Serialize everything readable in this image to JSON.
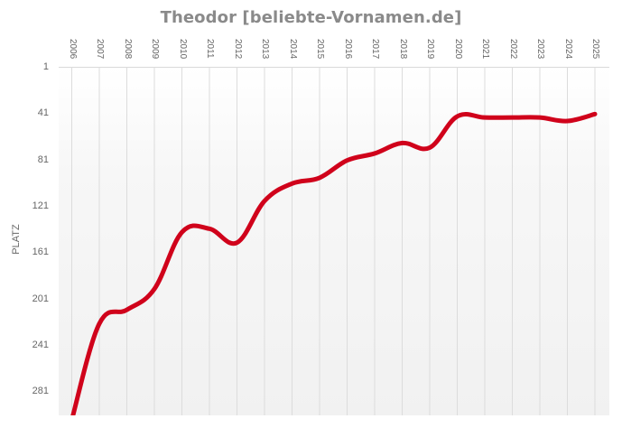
{
  "chart_data": {
    "type": "line",
    "title": "Theodor [beliebte-Vornamen.de]",
    "xlabel": "",
    "ylabel": "PLATZ",
    "y_inverted": true,
    "ylim": [
      1,
      300
    ],
    "y_ticks": [
      "1",
      "41",
      "81",
      "121",
      "161",
      "201",
      "241",
      "281"
    ],
    "x_ticks": [
      "2006",
      "2007",
      "2008",
      "2009",
      "2010",
      "2011",
      "2012",
      "2013",
      "2014",
      "2015",
      "2016",
      "2017",
      "2018",
      "2019",
      "2020",
      "2021",
      "2022",
      "2023",
      "2024",
      "2025"
    ],
    "grid": "vertical",
    "legend": "none",
    "series": [
      {
        "name": "Theodor",
        "color": "#d0021b",
        "x": [
          2006,
          2007,
          2008,
          2009,
          2010,
          2011,
          2012,
          2013,
          2014,
          2015,
          2016,
          2017,
          2018,
          2019,
          2020,
          2021,
          2022,
          2023,
          2024,
          2025
        ],
        "values": [
          305,
          222,
          210,
          192,
          143,
          140,
          152,
          116,
          101,
          96,
          81,
          75,
          66,
          70,
          43,
          44,
          44,
          44,
          47,
          41
        ]
      }
    ]
  }
}
